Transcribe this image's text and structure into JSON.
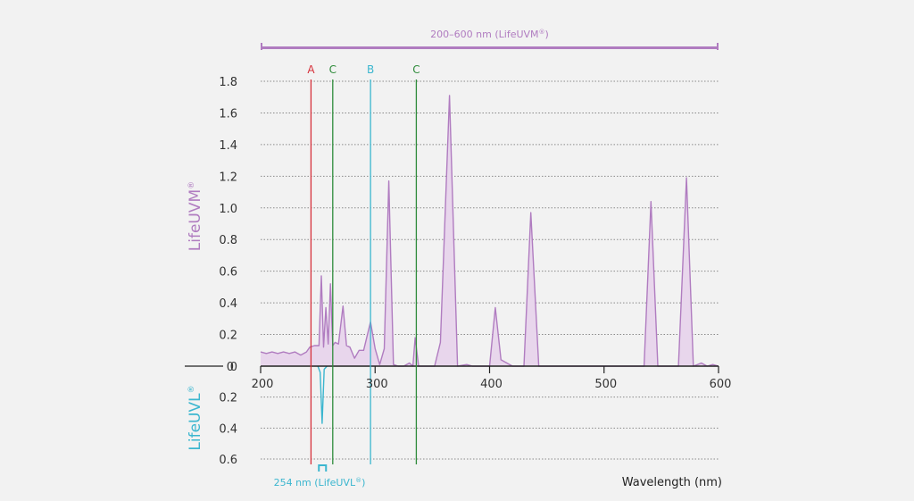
{
  "chart_data": {
    "type": "area",
    "xlabel": "Wavelength (nm)",
    "xlim": [
      200,
      600
    ],
    "x_ticks": [
      "200",
      "300",
      "400",
      "500",
      "600"
    ],
    "upper_axis": {
      "label": "LifeUVM",
      "label_mark": "®",
      "ylim": [
        0,
        1.8
      ],
      "y_ticks": [
        "0",
        "0.2",
        "0.4",
        "0.6",
        "0.8",
        "1.0",
        "1.2",
        "1.4",
        "1.6",
        "1.8"
      ],
      "grid": true
    },
    "lower_axis": {
      "label": "LifeUVL",
      "label_mark": "®",
      "ylim": [
        0,
        0.6
      ],
      "y_ticks": [
        "0.2",
        "0.4",
        "0.6"
      ],
      "grid": true
    },
    "range_bar": {
      "label": "200–600 nm (LifeUVM",
      "label_mark": "®",
      "label_end": ")",
      "from": 200,
      "to": 600
    },
    "point_label": {
      "label": "254 nm (LifeUVL",
      "label_mark": "®",
      "label_end": ")",
      "at": 254
    },
    "markers": [
      {
        "label": "A",
        "x": 244,
        "color": "#d6303a"
      },
      {
        "label": "C",
        "x": 263,
        "color": "#2e8b3a"
      },
      {
        "label": "B",
        "x": 296,
        "color": "#3bb6cf"
      },
      {
        "label": "C",
        "x": 336,
        "color": "#2e8b3a"
      }
    ],
    "series": [
      {
        "axis": "upper",
        "color": "#b07cc0",
        "fill": "#e8d6ec",
        "points": [
          [
            200,
            0.09
          ],
          [
            205,
            0.08
          ],
          [
            210,
            0.09
          ],
          [
            215,
            0.08
          ],
          [
            220,
            0.09
          ],
          [
            225,
            0.08
          ],
          [
            230,
            0.09
          ],
          [
            235,
            0.07
          ],
          [
            240,
            0.09
          ],
          [
            243,
            0.12
          ],
          [
            247,
            0.13
          ],
          [
            251,
            0.13
          ],
          [
            253,
            0.57
          ],
          [
            255,
            0.12
          ],
          [
            257,
            0.37
          ],
          [
            259,
            0.14
          ],
          [
            261,
            0.52
          ],
          [
            263,
            0.13
          ],
          [
            265,
            0.15
          ],
          [
            268,
            0.14
          ],
          [
            272,
            0.38
          ],
          [
            275,
            0.13
          ],
          [
            278,
            0.12
          ],
          [
            282,
            0.05
          ],
          [
            286,
            0.1
          ],
          [
            290,
            0.1
          ],
          [
            296,
            0.28
          ],
          [
            300,
            0.11
          ],
          [
            304,
            0.01
          ],
          [
            308,
            0.11
          ],
          [
            312,
            1.17
          ],
          [
            316,
            0.01
          ],
          [
            320,
            0.0
          ],
          [
            325,
            0.0
          ],
          [
            330,
            0.02
          ],
          [
            333,
            0.0
          ],
          [
            335,
            0.18
          ],
          [
            338,
            0.0
          ],
          [
            345,
            0.0
          ],
          [
            352,
            0.0
          ],
          [
            357,
            0.15
          ],
          [
            365,
            1.71
          ],
          [
            372,
            0.0
          ],
          [
            380,
            0.01
          ],
          [
            385,
            0.0
          ],
          [
            395,
            0.0
          ],
          [
            400,
            0.0
          ],
          [
            405,
            0.37
          ],
          [
            410,
            0.04
          ],
          [
            420,
            0.0
          ],
          [
            425,
            0.0
          ],
          [
            430,
            0.0
          ],
          [
            436,
            0.97
          ],
          [
            443,
            0.0
          ],
          [
            450,
            0.0
          ],
          [
            500,
            0.0
          ],
          [
            535,
            0.0
          ],
          [
            541,
            1.04
          ],
          [
            547,
            0.0
          ],
          [
            552,
            0.0
          ],
          [
            560,
            0.0
          ],
          [
            565,
            0.0
          ],
          [
            572,
            1.19
          ],
          [
            578,
            0.0
          ],
          [
            585,
            0.02
          ],
          [
            590,
            0.0
          ],
          [
            595,
            0.01
          ],
          [
            600,
            0.0
          ]
        ]
      },
      {
        "axis": "lower",
        "color": "#3bb6cf",
        "points": [
          [
            250,
            0.0
          ],
          [
            252,
            0.04
          ],
          [
            253.7,
            0.37
          ],
          [
            255.5,
            0.02
          ],
          [
            258,
            0.0
          ]
        ]
      }
    ]
  }
}
